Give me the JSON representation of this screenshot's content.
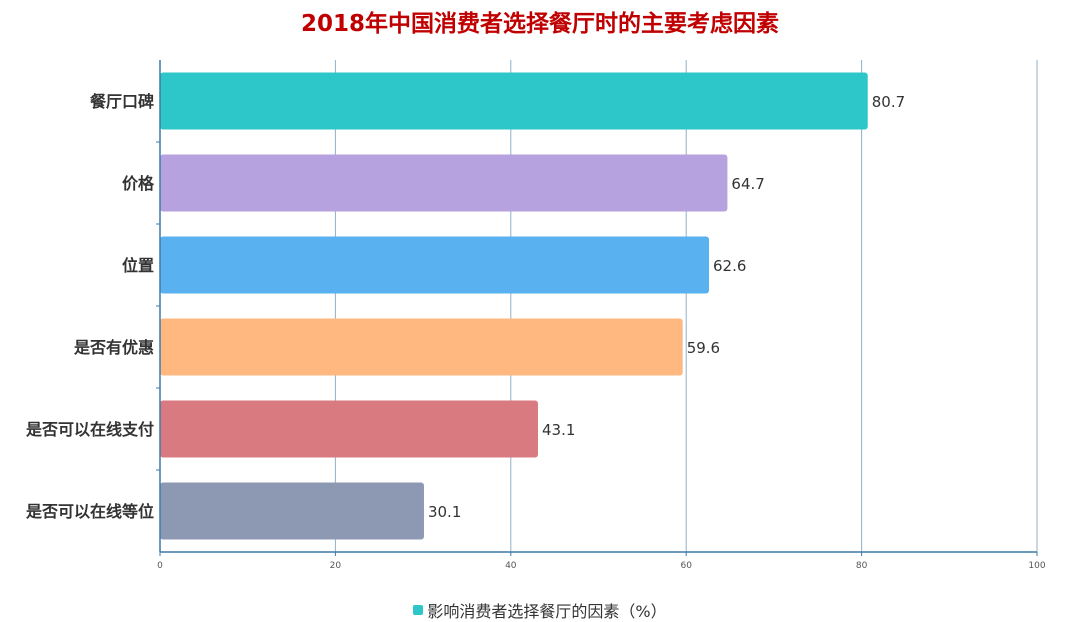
{
  "chart_data": {
    "type": "bar",
    "orientation": "horizontal",
    "title": "2018年中国消费者选择餐厅时的主要考虑因素",
    "categories": [
      "餐厅口碑",
      "价格",
      "位置",
      "是否有优惠",
      "是否可以在线支付",
      "是否可以在线等位"
    ],
    "series": [
      {
        "name": "影响消费者选择餐厅的因素（%）",
        "values": [
          80.7,
          64.7,
          62.6,
          59.6,
          43.1,
          30.1
        ]
      }
    ],
    "bar_colors": [
      "#2ec7c9",
      "#b6a2de",
      "#5ab1ef",
      "#ffb980",
      "#d87a80",
      "#8d98b3"
    ],
    "xlim": [
      0,
      100
    ],
    "xticks": [
      0,
      20,
      40,
      60,
      80,
      100
    ],
    "grid": true,
    "legend_position": "bottom"
  }
}
